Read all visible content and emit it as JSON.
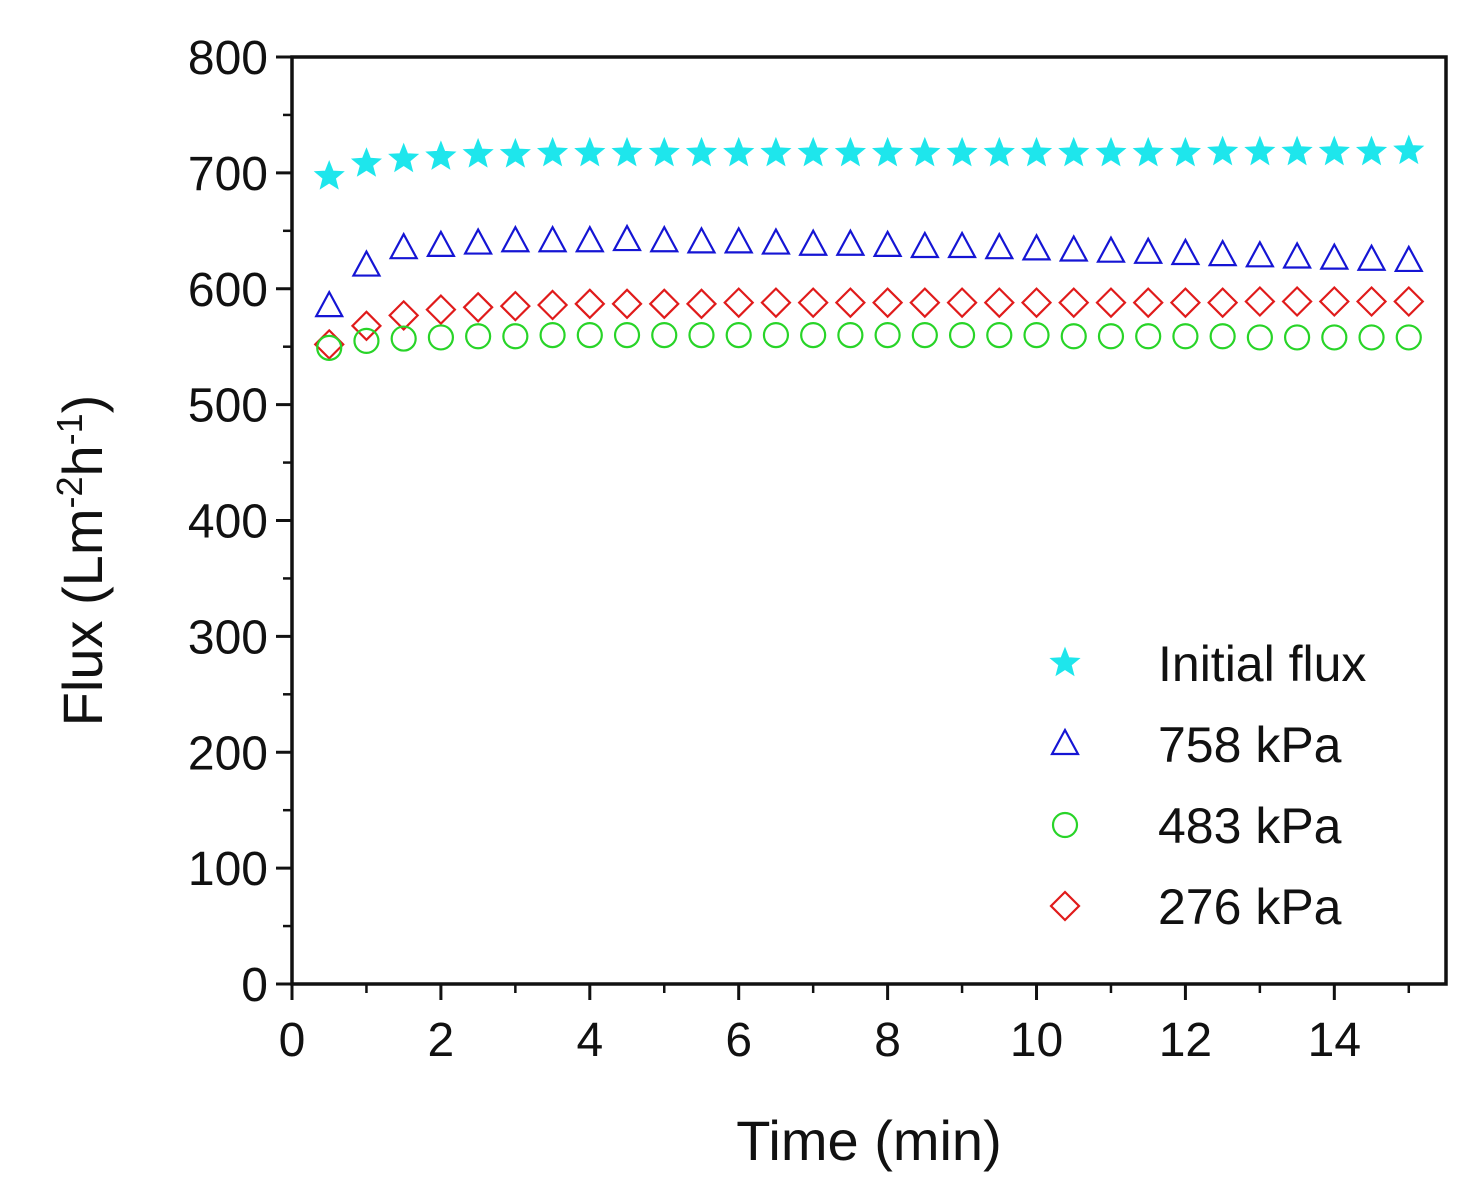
{
  "chart_data": {
    "type": "scatter",
    "title": "",
    "xlabel": "Time (min)",
    "ylabel": {
      "prefix": "Flux (Lm",
      "sup1": "-2",
      "mid": "h",
      "sup2": "-1",
      "suffix": ")"
    },
    "xlim": [
      0,
      15.5
    ],
    "ylim": [
      0,
      800
    ],
    "x_ticks": [
      0,
      2,
      4,
      6,
      8,
      10,
      12,
      14
    ],
    "y_ticks": [
      0,
      100,
      200,
      300,
      400,
      500,
      600,
      700,
      800
    ],
    "x_minor_step": 1,
    "y_minor_step": 50,
    "grid": false,
    "legend_position": "bottom-right",
    "x": [
      0.5,
      1.0,
      1.5,
      2.0,
      2.5,
      3.0,
      3.5,
      4.0,
      4.5,
      5.0,
      5.5,
      6.0,
      6.5,
      7.0,
      7.5,
      8.0,
      8.5,
      9.0,
      9.5,
      10.0,
      10.5,
      11.0,
      11.5,
      12.0,
      12.5,
      13.0,
      13.5,
      14.0,
      14.5,
      15.0
    ],
    "series": [
      {
        "name": "Initial flux",
        "marker": "star",
        "filled": true,
        "color": "#1ee6ec",
        "values": [
          697,
          708,
          712,
          714,
          716,
          716,
          717,
          717,
          717,
          717,
          717,
          717,
          717,
          717,
          717,
          717,
          717,
          717,
          717,
          717,
          717,
          717,
          717,
          717,
          718,
          718,
          718,
          718,
          718,
          719
        ]
      },
      {
        "name": "758 kPa",
        "marker": "triangle",
        "filled": false,
        "color": "#1515d4",
        "values": [
          585,
          620,
          635,
          637,
          639,
          641,
          641,
          641,
          642,
          641,
          640,
          640,
          639,
          638,
          638,
          637,
          636,
          636,
          635,
          634,
          633,
          632,
          631,
          630,
          629,
          628,
          627,
          626,
          625,
          624
        ]
      },
      {
        "name": "483 kPa",
        "marker": "circle",
        "filled": false,
        "color": "#28d428",
        "values": [
          549,
          555,
          557,
          558,
          559,
          559,
          560,
          560,
          560,
          560,
          560,
          560,
          560,
          560,
          560,
          560,
          560,
          560,
          560,
          560,
          559,
          559,
          559,
          559,
          559,
          558,
          558,
          558,
          558,
          558
        ]
      },
      {
        "name": "276 kPa",
        "marker": "diamond",
        "filled": false,
        "color": "#e01b1b",
        "values": [
          552,
          568,
          577,
          582,
          584,
          585,
          586,
          587,
          587,
          587,
          587,
          588,
          588,
          588,
          588,
          588,
          588,
          588,
          588,
          588,
          588,
          588,
          588,
          588,
          588,
          589,
          589,
          589,
          589,
          589
        ]
      }
    ]
  }
}
